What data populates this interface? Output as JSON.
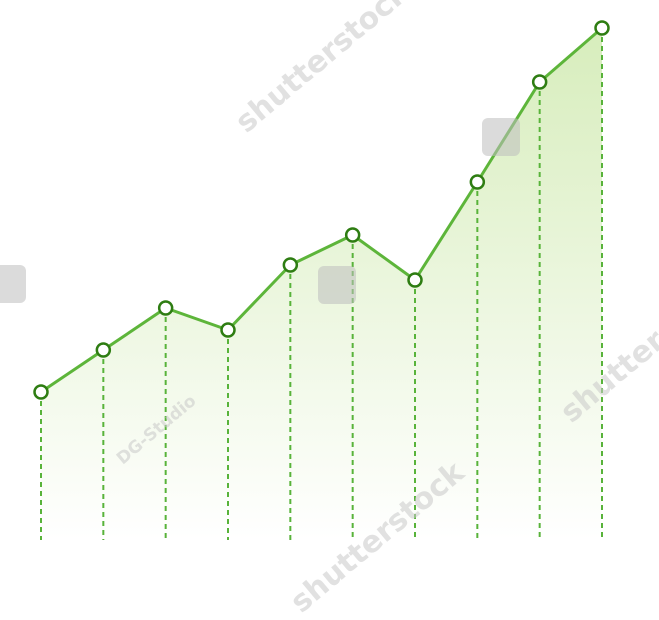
{
  "chart_data": {
    "type": "line",
    "title": "",
    "xlabel": "",
    "ylabel": "",
    "x": [
      1,
      2,
      3,
      4,
      5,
      6,
      7,
      8,
      9,
      10
    ],
    "series": [
      {
        "values": [
          148,
          190,
          232,
          210,
          275,
          305,
          260,
          358,
          458,
          512
        ]
      }
    ],
    "ylim": [
      0,
      540
    ],
    "grid": false,
    "legend": "none",
    "markers": "hollow circles",
    "drop_lines": "dashed vertical",
    "fill": "gradient area"
  },
  "colors": {
    "line": "#5db53a",
    "marker_stroke": "#2e7d12",
    "drop_line": "#58b33a",
    "fill_top": "#d7edbc",
    "fill_bottom": "#ffffff"
  },
  "watermark": {
    "brand": "shutterstock",
    "contributor": "DG-Studio"
  }
}
